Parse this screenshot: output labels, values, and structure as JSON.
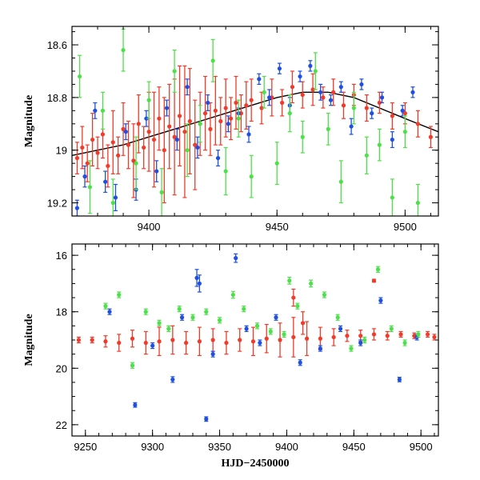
{
  "chart_data": [
    {
      "type": "scatter",
      "panel": "top",
      "title": "",
      "xlabel": "",
      "ylabel": "Magnitude",
      "xlim": [
        9370,
        9513
      ],
      "ylim": [
        19.25,
        18.53
      ],
      "y_inverted": true,
      "grid": false,
      "xticks": [
        9400,
        9450,
        9500
      ],
      "xtick_labels": [
        "9400",
        "9450",
        "9500"
      ],
      "yticks": [
        18.6,
        18.8,
        19.0,
        19.2
      ],
      "ytick_labels": [
        "18.6",
        "18.8",
        "19",
        "19.2"
      ],
      "model_curve": {
        "name": "model",
        "color": "#000000",
        "x": [
          9370,
          9380,
          9390,
          9400,
          9410,
          9420,
          9430,
          9440,
          9450,
          9460,
          9470,
          9480,
          9490,
          9500,
          9513
        ],
        "y": [
          19.02,
          19.0,
          18.98,
          18.95,
          18.92,
          18.89,
          18.86,
          18.83,
          18.8,
          18.78,
          18.78,
          18.8,
          18.84,
          18.88,
          18.93
        ]
      },
      "series": [
        {
          "name": "red",
          "color": "#f23a2a",
          "x": [
            9372,
            9374,
            9376,
            9378,
            9380,
            9382,
            9384,
            9386,
            9388,
            9390,
            9392,
            9394,
            9396,
            9398,
            9400,
            9402,
            9404,
            9406,
            9408,
            9410,
            9412,
            9414,
            9416,
            9418,
            9420,
            9422,
            9424,
            9426,
            9428,
            9430,
            9432,
            9434,
            9436,
            9438,
            9440,
            9444,
            9448,
            9452,
            9456,
            9460,
            9464,
            9468,
            9472,
            9476,
            9480,
            9485,
            9490,
            9495,
            9500,
            9505,
            9510
          ],
          "y": [
            19.03,
            18.99,
            19.05,
            18.96,
            19.01,
            18.94,
            19.06,
            18.97,
            19.02,
            18.92,
            18.98,
            19.04,
            18.9,
            18.99,
            18.93,
            18.96,
            18.88,
            19.0,
            18.91,
            18.95,
            18.87,
            18.93,
            18.89,
            18.98,
            18.9,
            18.86,
            18.92,
            18.85,
            18.89,
            18.84,
            18.88,
            18.82,
            18.86,
            18.83,
            18.81,
            18.84,
            18.8,
            18.82,
            18.76,
            18.79,
            18.77,
            18.8,
            18.78,
            18.83,
            18.79,
            18.84,
            18.82,
            18.87,
            18.86,
            18.9,
            18.95
          ],
          "err": [
            0.06,
            0.08,
            0.07,
            0.1,
            0.06,
            0.09,
            0.08,
            0.12,
            0.07,
            0.1,
            0.09,
            0.14,
            0.11,
            0.08,
            0.15,
            0.18,
            0.12,
            0.2,
            0.16,
            0.22,
            0.19,
            0.25,
            0.2,
            0.17,
            0.12,
            0.14,
            0.1,
            0.13,
            0.09,
            0.11,
            0.08,
            0.1,
            0.07,
            0.09,
            0.08,
            0.06,
            0.07,
            0.05,
            0.06,
            0.05,
            0.06,
            0.04,
            0.05,
            0.05,
            0.04,
            0.05,
            0.04,
            0.05,
            0.04,
            0.05,
            0.04
          ]
        },
        {
          "name": "blue",
          "color": "#1f4fe0",
          "x": [
            9372,
            9375,
            9379,
            9383,
            9387,
            9391,
            9395,
            9399,
            9403,
            9407,
            9411,
            9415,
            9419,
            9423,
            9427,
            9431,
            9435,
            9439,
            9443,
            9447,
            9451,
            9455,
            9459,
            9463,
            9467,
            9471,
            9475,
            9479,
            9483,
            9487,
            9491,
            9495,
            9499,
            9503
          ],
          "y": [
            19.22,
            19.1,
            18.85,
            19.12,
            19.18,
            18.93,
            19.15,
            18.88,
            19.08,
            18.84,
            18.96,
            18.76,
            18.99,
            18.82,
            19.03,
            18.9,
            18.86,
            18.94,
            18.73,
            18.8,
            18.69,
            18.83,
            18.72,
            18.68,
            18.78,
            18.81,
            18.76,
            18.91,
            18.75,
            18.86,
            18.8,
            18.96,
            18.85,
            18.78
          ],
          "err": [
            0.03,
            0.04,
            0.03,
            0.04,
            0.05,
            0.03,
            0.04,
            0.03,
            0.04,
            0.03,
            0.04,
            0.03,
            0.04,
            0.03,
            0.03,
            0.03,
            0.02,
            0.03,
            0.02,
            0.03,
            0.02,
            0.03,
            0.02,
            0.02,
            0.03,
            0.02,
            0.02,
            0.03,
            0.02,
            0.02,
            0.02,
            0.03,
            0.02,
            0.02
          ]
        },
        {
          "name": "green",
          "color": "#4de04a",
          "x": [
            9373,
            9377,
            9382,
            9386,
            9390,
            9395,
            9400,
            9405,
            9410,
            9415,
            9420,
            9425,
            9430,
            9435,
            9440,
            9445,
            9450,
            9455,
            9460,
            9465,
            9470,
            9475,
            9480,
            9485,
            9490,
            9495,
            9500,
            9505
          ],
          "y": [
            18.72,
            19.14,
            18.85,
            19.2,
            18.62,
            19.05,
            18.81,
            19.16,
            18.7,
            19.0,
            18.9,
            18.66,
            19.08,
            18.88,
            19.1,
            18.78,
            19.05,
            18.86,
            18.95,
            18.7,
            18.92,
            19.12,
            18.84,
            19.02,
            18.98,
            19.18,
            18.93,
            19.2
          ],
          "err": [
            0.08,
            0.1,
            0.07,
            0.09,
            0.08,
            0.1,
            0.07,
            0.09,
            0.08,
            0.1,
            0.07,
            0.08,
            0.09,
            0.07,
            0.08,
            0.06,
            0.08,
            0.07,
            0.06,
            0.07,
            0.06,
            0.08,
            0.06,
            0.07,
            0.06,
            0.07,
            0.06,
            0.07
          ]
        }
      ]
    },
    {
      "type": "scatter",
      "panel": "bottom",
      "title": "",
      "xlabel": "HJD−2450000",
      "ylabel": "Magnitude",
      "xlim": [
        9240,
        9513
      ],
      "ylim": [
        22.4,
        15.6
      ],
      "y_inverted": true,
      "grid": false,
      "xticks": [
        9250,
        9300,
        9350,
        9400,
        9450,
        9500
      ],
      "xtick_labels": [
        "9250",
        "9300",
        "9350",
        "9400",
        "9450",
        "9500"
      ],
      "yticks": [
        16,
        18,
        20,
        22
      ],
      "ytick_labels": [
        "16",
        "18",
        "20",
        "22"
      ],
      "series": [
        {
          "name": "red",
          "color": "#f23a2a",
          "x": [
            9245,
            9255,
            9265,
            9275,
            9285,
            9295,
            9305,
            9315,
            9325,
            9335,
            9345,
            9355,
            9365,
            9375,
            9385,
            9395,
            9405,
            9415,
            9425,
            9435,
            9445,
            9455,
            9465,
            9475,
            9485,
            9495,
            9505,
            9510,
            9405,
            9412,
            9465
          ],
          "y": [
            19.0,
            19.0,
            19.05,
            19.1,
            18.95,
            19.1,
            19.05,
            19.0,
            19.1,
            19.05,
            19.0,
            19.1,
            19.0,
            19.05,
            18.95,
            19.0,
            18.9,
            18.95,
            18.95,
            18.9,
            18.85,
            18.85,
            18.8,
            18.85,
            18.8,
            18.85,
            18.8,
            18.9,
            17.5,
            18.4,
            16.9
          ],
          "err": [
            0.1,
            0.1,
            0.2,
            0.3,
            0.3,
            0.4,
            0.5,
            0.5,
            0.4,
            0.5,
            0.4,
            0.4,
            0.4,
            0.5,
            0.5,
            0.6,
            0.7,
            0.6,
            0.4,
            0.3,
            0.2,
            0.2,
            0.2,
            0.15,
            0.1,
            0.1,
            0.1,
            0.1,
            0.3,
            0.4,
            0.05
          ]
        },
        {
          "name": "blue",
          "color": "#1f4fe0",
          "x": [
            9268,
            9287,
            9300,
            9315,
            9322,
            9333,
            9335,
            9340,
            9345,
            9362,
            9370,
            9380,
            9392,
            9410,
            9425,
            9440,
            9455,
            9470,
            9484,
            9497
          ],
          "y": [
            18.0,
            21.3,
            19.2,
            20.4,
            18.2,
            16.8,
            17.0,
            21.8,
            19.5,
            16.1,
            18.6,
            19.1,
            18.2,
            19.8,
            19.3,
            18.6,
            19.1,
            17.6,
            20.4,
            18.9
          ],
          "err": [
            0.1,
            0.08,
            0.1,
            0.1,
            0.1,
            0.3,
            0.3,
            0.08,
            0.1,
            0.15,
            0.1,
            0.1,
            0.1,
            0.1,
            0.1,
            0.1,
            0.1,
            0.1,
            0.08,
            0.1
          ]
        },
        {
          "name": "green",
          "color": "#4de04a",
          "x": [
            9265,
            9275,
            9285,
            9295,
            9305,
            9312,
            9320,
            9330,
            9340,
            9350,
            9360,
            9368,
            9378,
            9388,
            9398,
            9402,
            9408,
            9418,
            9428,
            9438,
            9448,
            9458,
            9468,
            9478,
            9488,
            9498
          ],
          "y": [
            17.8,
            17.4,
            19.9,
            18.0,
            18.4,
            18.6,
            17.9,
            18.2,
            18.0,
            18.3,
            17.4,
            17.9,
            18.5,
            18.7,
            18.8,
            16.9,
            17.8,
            17.0,
            17.4,
            18.2,
            19.3,
            19.0,
            16.5,
            18.6,
            19.1,
            18.8
          ],
          "err": [
            0.1,
            0.1,
            0.1,
            0.1,
            0.1,
            0.1,
            0.1,
            0.1,
            0.1,
            0.1,
            0.12,
            0.1,
            0.1,
            0.1,
            0.1,
            0.12,
            0.1,
            0.12,
            0.1,
            0.1,
            0.1,
            0.1,
            0.1,
            0.1,
            0.1,
            0.1
          ]
        }
      ]
    }
  ]
}
